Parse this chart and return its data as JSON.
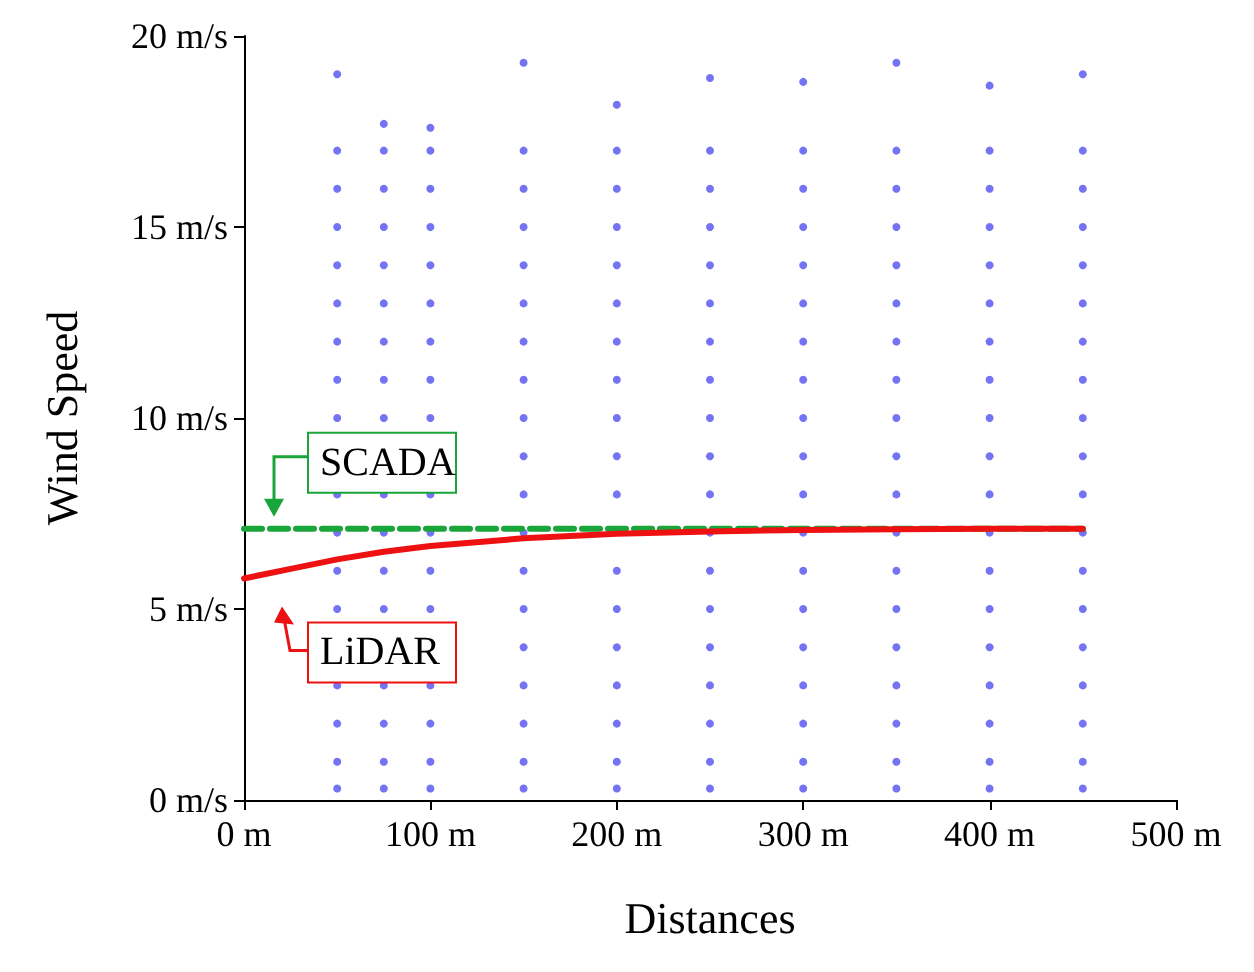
{
  "chart_data": {
    "type": "scatter",
    "xlabel": "Distances",
    "ylabel": "Wind Speed",
    "xlim": [
      0,
      500
    ],
    "ylim": [
      0,
      20
    ],
    "xticks": [
      {
        "value": 0,
        "label": "0 m"
      },
      {
        "value": 100,
        "label": "100 m"
      },
      {
        "value": 200,
        "label": "200 m"
      },
      {
        "value": 300,
        "label": "300 m"
      },
      {
        "value": 400,
        "label": "400 m"
      },
      {
        "value": 500,
        "label": "500 m"
      }
    ],
    "yticks": [
      {
        "value": 0,
        "label": "0 m/s"
      },
      {
        "value": 5,
        "label": "5 m/s"
      },
      {
        "value": 10,
        "label": "10 m/s"
      },
      {
        "value": 15,
        "label": "15 m/s"
      },
      {
        "value": 20,
        "label": "20 m/s"
      }
    ],
    "grid": false,
    "legend": "left",
    "series": [
      {
        "color": "#5050f0",
        "marker": "circle",
        "x": [
          50,
          50,
          50,
          50,
          50,
          50,
          50,
          50,
          50,
          50,
          50,
          50,
          50,
          50,
          50,
          50,
          50,
          75,
          75,
          75,
          75,
          75,
          75,
          75,
          75,
          75,
          75,
          75,
          75,
          75,
          75,
          75,
          75,
          75,
          100,
          100,
          100,
          100,
          100,
          100,
          100,
          100,
          100,
          100,
          100,
          100,
          100,
          100,
          100,
          100,
          100,
          150,
          150,
          150,
          150,
          150,
          150,
          150,
          150,
          150,
          150,
          150,
          150,
          150,
          150,
          150,
          150,
          150,
          150,
          150,
          200,
          200,
          200,
          200,
          200,
          200,
          200,
          200,
          200,
          200,
          200,
          200,
          200,
          200,
          200,
          200,
          200,
          200,
          250,
          250,
          250,
          250,
          250,
          250,
          250,
          250,
          250,
          250,
          250,
          250,
          250,
          250,
          250,
          250,
          250,
          250,
          250,
          300,
          300,
          300,
          300,
          300,
          300,
          300,
          300,
          300,
          300,
          300,
          300,
          300,
          300,
          300,
          300,
          300,
          300,
          300,
          350,
          350,
          350,
          350,
          350,
          350,
          350,
          350,
          350,
          350,
          350,
          350,
          350,
          350,
          350,
          350,
          350,
          350,
          350,
          400,
          400,
          400,
          400,
          400,
          400,
          400,
          400,
          400,
          400,
          400,
          400,
          400,
          400,
          400,
          400,
          400,
          400,
          400,
          450,
          450,
          450,
          450,
          450,
          450,
          450,
          450,
          450,
          450,
          450,
          450,
          450,
          450,
          450,
          450,
          450,
          450,
          450
        ],
        "values": [
          0.3,
          1,
          2,
          3,
          5,
          6,
          7,
          8,
          10,
          11,
          12,
          13,
          14,
          15,
          16,
          17,
          19.0,
          0.3,
          1,
          2,
          3,
          5,
          6,
          7,
          8,
          10,
          11,
          12,
          13,
          14,
          15,
          16,
          17,
          17.7,
          0.3,
          1,
          2,
          3,
          5,
          6,
          7,
          8,
          10,
          11,
          12,
          13,
          14,
          15,
          16,
          17,
          17.6,
          0.3,
          1,
          2,
          3,
          4,
          5,
          6,
          7,
          8,
          9,
          10,
          11,
          12,
          13,
          14,
          15,
          16,
          17,
          19.3,
          0.3,
          1,
          2,
          3,
          4,
          5,
          6,
          8,
          9,
          10,
          11,
          12,
          13,
          14,
          15,
          16,
          17,
          18.2,
          0.3,
          1,
          2,
          3,
          4,
          5,
          6,
          7,
          8,
          9,
          10,
          11,
          12,
          13,
          14,
          15,
          16,
          17,
          18.9,
          0.3,
          1,
          2,
          3,
          4,
          5,
          6,
          7,
          8,
          9,
          10,
          11,
          12,
          13,
          14,
          15,
          16,
          17,
          18.8,
          0.3,
          1,
          2,
          3,
          4,
          5,
          6,
          7,
          8,
          9,
          10,
          11,
          12,
          13,
          14,
          15,
          16,
          17,
          19.3,
          0.3,
          1,
          2,
          3,
          4,
          5,
          6,
          7,
          8,
          9,
          10,
          11,
          12,
          13,
          14,
          15,
          16,
          17,
          18.7,
          0.3,
          1,
          2,
          3,
          4,
          5,
          6,
          7,
          8,
          9,
          10,
          11,
          12,
          13,
          14,
          15,
          16,
          17,
          19.0
        ]
      },
      {
        "type": "line",
        "name": "SCADA",
        "color": "#1aa53a",
        "line_style": "dashed",
        "marker": "none",
        "x": [
          0,
          450
        ],
        "values": [
          7.1,
          7.1
        ]
      },
      {
        "type": "line",
        "name": "LiDAR",
        "color": "#ee1111",
        "line_style": "solid",
        "marker": "none",
        "x": [
          0,
          25,
          50,
          75,
          100,
          150,
          200,
          250,
          300,
          350,
          400,
          450
        ],
        "values": [
          5.8,
          6.05,
          6.3,
          6.5,
          6.65,
          6.85,
          6.97,
          7.03,
          7.07,
          7.09,
          7.1,
          7.1
        ]
      }
    ]
  }
}
